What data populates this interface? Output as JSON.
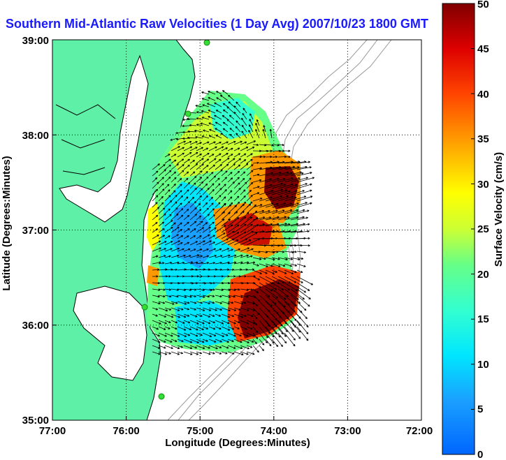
{
  "title": "Southern Mid-Atlantic Raw Velocities (1 Day Avg) 2007/10/23 1800 GMT",
  "map": {
    "xlabel": "Longitude (Degrees:Minutes)",
    "ylabel": "Latitude (Degrees:Minutes)",
    "xticks": [
      "77:00",
      "76:00",
      "75:00",
      "74:00",
      "73:00",
      "72:00"
    ],
    "yticks": [
      "39:00",
      "38:00",
      "37:00",
      "36:00",
      "35:00"
    ],
    "grid": "dotted"
  },
  "colorbar": {
    "label": "Surface Velocity (cm/s)",
    "ticks": [
      "50",
      "45",
      "40",
      "35",
      "30",
      "25",
      "20",
      "15",
      "10",
      "5",
      "0"
    ],
    "min": 0,
    "max": 50,
    "colormap": "jet"
  },
  "colors": {
    "land": "#5ff0a8",
    "title": "#1a1aff",
    "station": "#33dd33"
  }
}
